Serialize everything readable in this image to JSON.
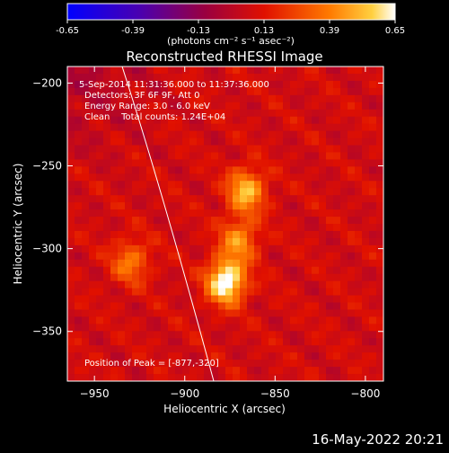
{
  "colorbar": {
    "ticks": [
      "-0.65",
      "-0.39",
      "-0.13",
      "0.13",
      "0.39",
      "0.65"
    ],
    "units_label": "(photons cm⁻² s⁻¹ asec⁻²)",
    "range": [
      -0.65,
      0.65
    ]
  },
  "footer": {
    "timestamp": "16-May-2022 20:21"
  },
  "chart_data": {
    "type": "heatmap",
    "title": "Reconstructed RHESSI Image",
    "xlabel": "Heliocentric X (arcsec)",
    "ylabel": "Heliocentric Y (arcsec)",
    "xlim": [
      -965,
      -790
    ],
    "ylim": [
      -380,
      -190
    ],
    "x_ticks": [
      -950,
      -900,
      -850,
      -800
    ],
    "y_ticks": [
      -200,
      -250,
      -300,
      -350
    ],
    "annotations": [
      "5-Sep-2014 11:31:36.000 to 11:37:36.000",
      "Detectors: 3F 6F 9F, Att 0",
      "Energy Range: 3.0 - 6.0 keV",
      "Clean    Total counts: 1.24E+04"
    ],
    "peak_label": "Position of Peak = [-877,-320]",
    "peak": [
      -877,
      -320
    ],
    "sources": [
      {
        "x": -877,
        "y": -320,
        "intensity": 0.65
      },
      {
        "x": -866,
        "y": -265,
        "intensity": 0.45
      },
      {
        "x": -870,
        "y": -295,
        "intensity": 0.35
      },
      {
        "x": -930,
        "y": -308,
        "intensity": 0.3
      }
    ]
  }
}
